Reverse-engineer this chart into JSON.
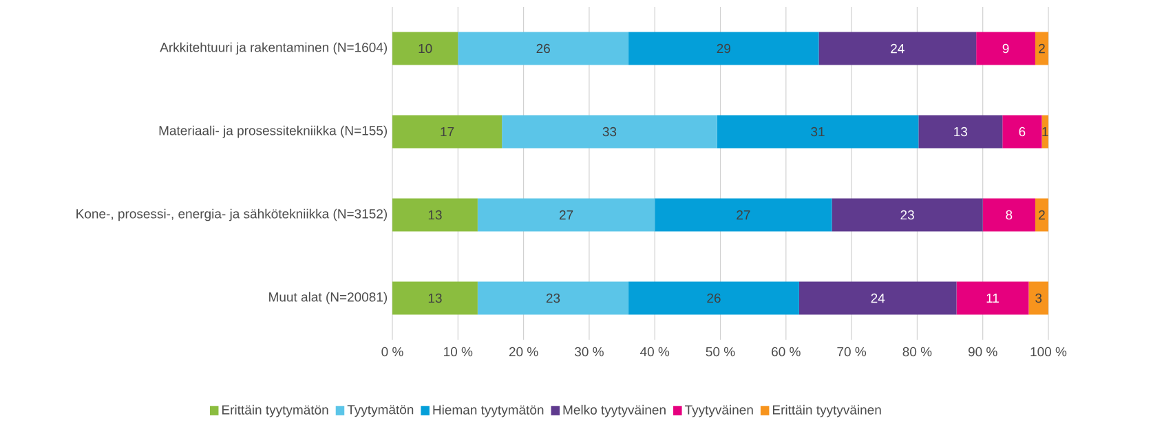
{
  "chart_data": {
    "type": "bar",
    "orientation": "horizontal",
    "stacked": true,
    "grid": "x",
    "legend": "bottom",
    "categories": [
      "Arkkitehtuuri ja rakentaminen (N=1604)",
      "Materiaali- ja prosessitekniikka (N=155)",
      "Kone-, prosessi-, energia- ja sähkötekniikka (N=3152)",
      "Muut alat (N=20081)"
    ],
    "xlim": [
      0,
      100
    ],
    "xticks": [
      {
        "value": 0,
        "label": "0 %"
      },
      {
        "value": 10,
        "label": "10 %"
      },
      {
        "value": 20,
        "label": "20 %"
      },
      {
        "value": 30,
        "label": "30 %"
      },
      {
        "value": 40,
        "label": "40 %"
      },
      {
        "value": 50,
        "label": "50 %"
      },
      {
        "value": 60,
        "label": "60 %"
      },
      {
        "value": 70,
        "label": "70 %"
      },
      {
        "value": 80,
        "label": "80 %"
      },
      {
        "value": 90,
        "label": "90 %"
      },
      {
        "value": 100,
        "label": "100 %"
      }
    ],
    "series": [
      {
        "name": "Erittäin tyytymätön",
        "color": "#8bbd3f",
        "values": [
          10,
          16.7,
          13,
          13
        ],
        "value_labels": [
          "10",
          "17",
          "13",
          "13"
        ]
      },
      {
        "name": "Tyytymätön",
        "color": "#5bc5e8",
        "values": [
          26,
          32.8,
          27,
          23
        ],
        "value_labels": [
          "26",
          "33",
          "27",
          "23"
        ]
      },
      {
        "name": "Hieman tyytymätön",
        "color": "#049fd9",
        "values": [
          29,
          30.7,
          27,
          26
        ],
        "value_labels": [
          "29",
          "31",
          "27",
          "26"
        ]
      },
      {
        "name": "Melko tyytyväinen",
        "color": "#5f3a8e",
        "values": [
          24,
          12.8,
          23,
          24
        ],
        "value_labels": [
          "24",
          "13",
          "23",
          "24"
        ]
      },
      {
        "name": "Tyytyväinen",
        "color": "#e6007e",
        "values": [
          9,
          6,
          8,
          11
        ],
        "value_labels": [
          "9",
          "6",
          "8",
          "11"
        ]
      },
      {
        "name": "Erittäin tyytyväinen",
        "color": "#f7941d",
        "values": [
          2,
          1,
          2,
          3
        ],
        "value_labels": [
          "2",
          "1",
          "2",
          "3"
        ]
      }
    ]
  }
}
